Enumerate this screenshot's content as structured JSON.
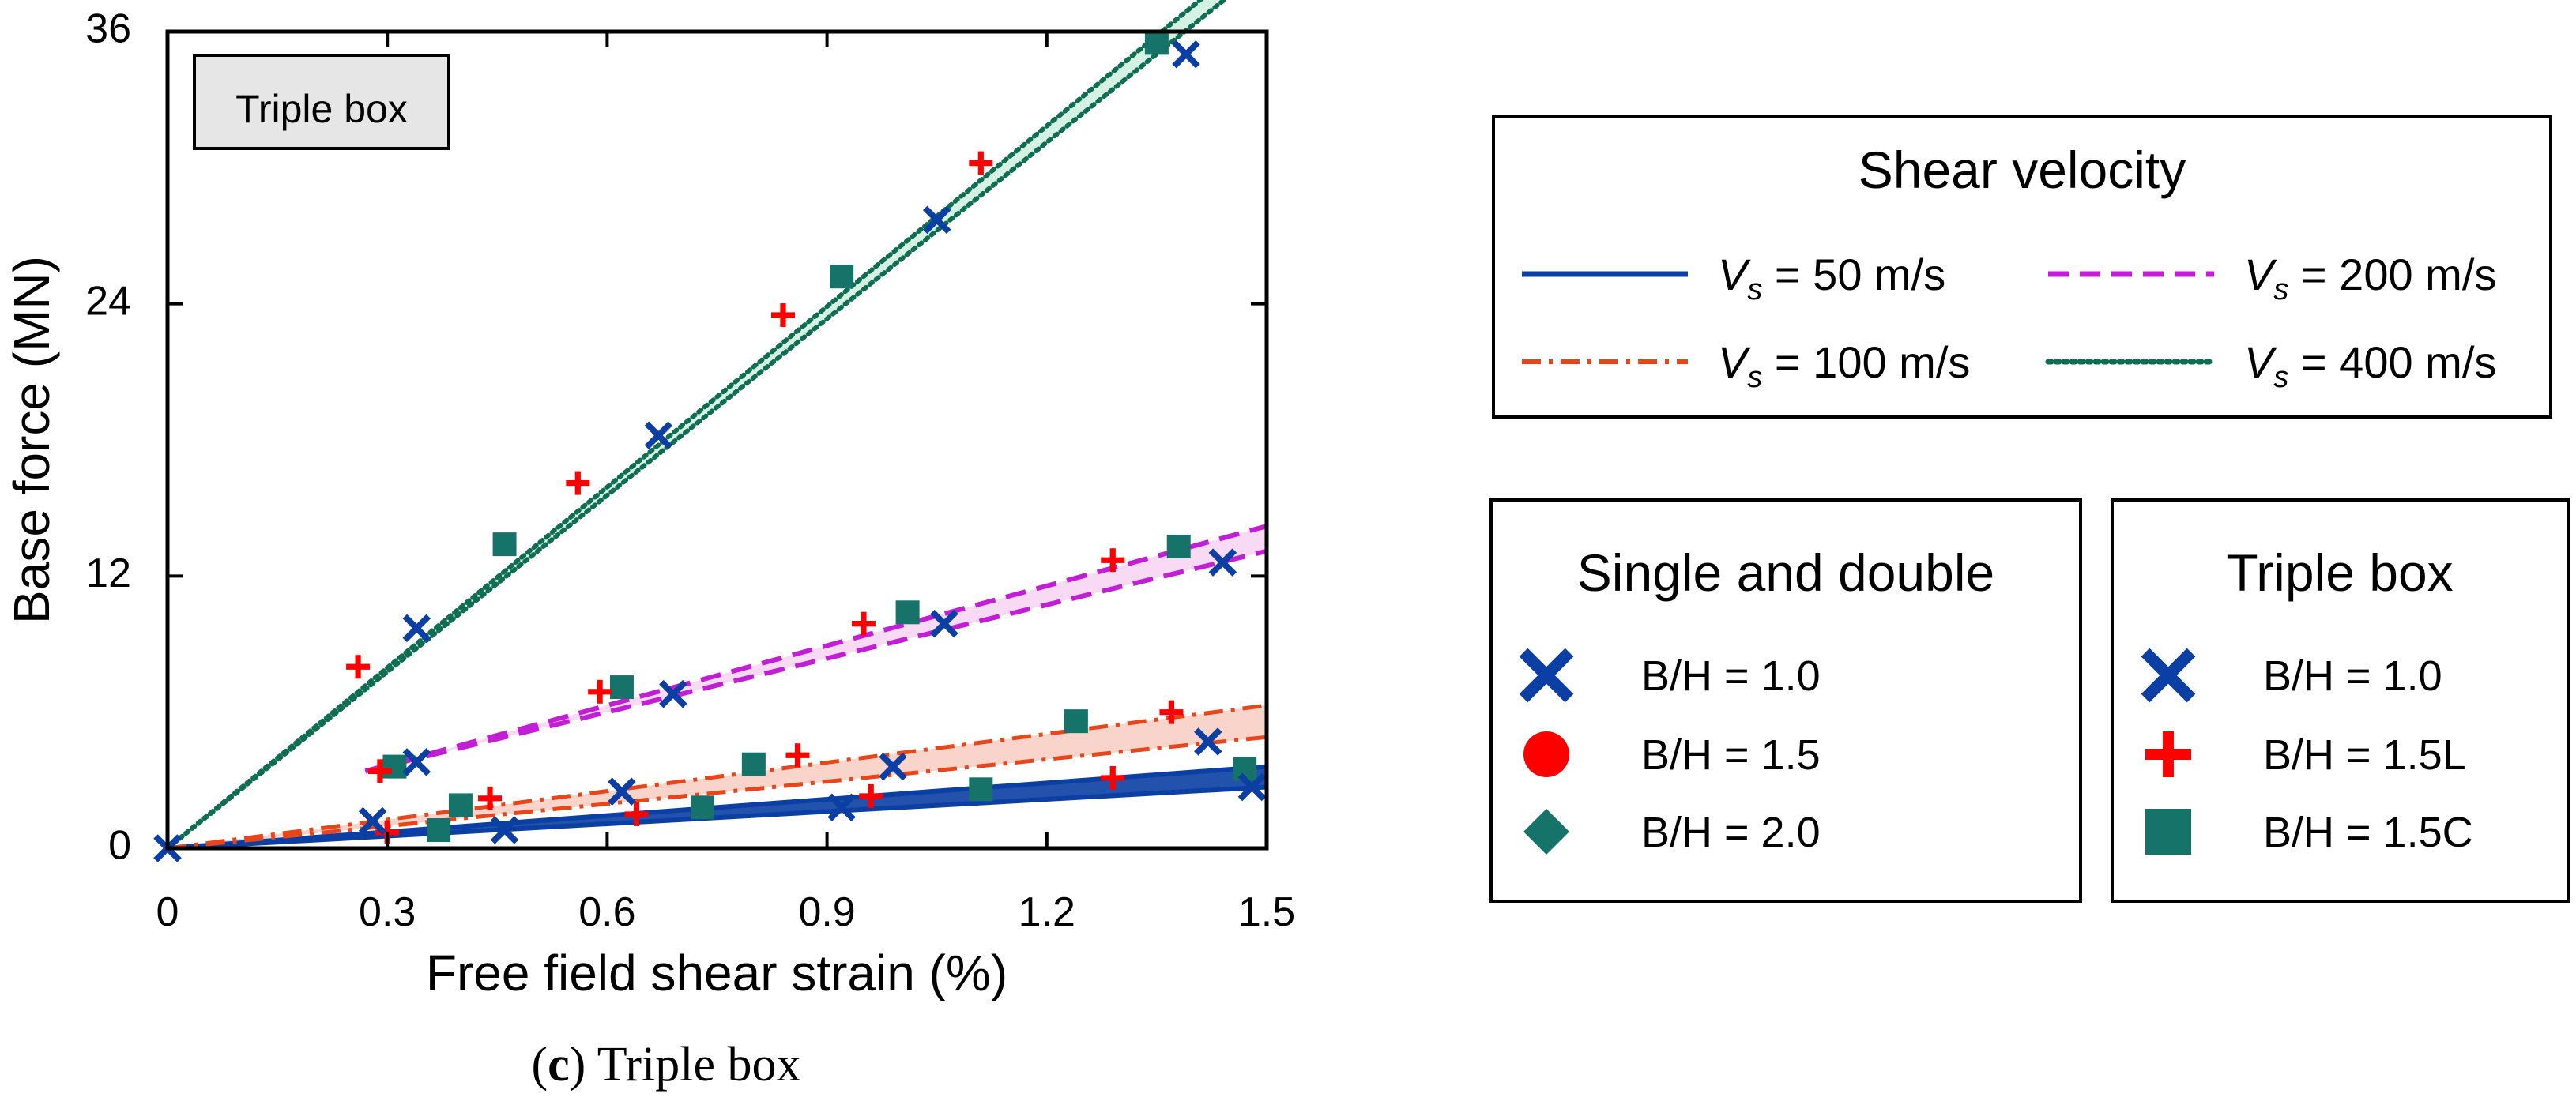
{
  "chart_data": {
    "type": "scatter",
    "caption_letter": "c",
    "caption_text": "Triple box",
    "panel_label": "Triple box",
    "xlabel": "Free field shear strain (%)",
    "ylabel": "Base force (MN)",
    "xlim": [
      0,
      1.5
    ],
    "ylim": [
      0,
      36
    ],
    "xticks": [
      0,
      0.3,
      0.6,
      0.9,
      1.2,
      1.5
    ],
    "xtick_labels": [
      "0",
      "0.3",
      "0.6",
      "0.9",
      "1.2",
      "1.5"
    ],
    "yticks": [
      0,
      12,
      24,
      36
    ],
    "ytick_labels": [
      "0",
      "12",
      "24",
      "36"
    ],
    "velocity_legend": {
      "title": "Shear velocity",
      "symbol": "V",
      "subscript": "s",
      "entries": [
        {
          "key": "v50",
          "label": " = 50 m/s",
          "color": "#0b3fa3",
          "style": "solid"
        },
        {
          "key": "v200",
          "label": " = 200 m/s",
          "color": "#c21ed6",
          "style": "dashed"
        },
        {
          "key": "v100",
          "label": " = 100 m/s",
          "color": "#e8461a",
          "style": "dashdot"
        },
        {
          "key": "v400",
          "label": " = 400 m/s",
          "color": "#0f6e52",
          "style": "dotted"
        }
      ]
    },
    "single_double_legend": {
      "title": "Single and double",
      "entries": [
        {
          "marker": "x",
          "label": "B/H = 1.0",
          "color": "#0b3fa3"
        },
        {
          "marker": "circle",
          "label": "B/H = 1.5",
          "color": "#ff0000"
        },
        {
          "marker": "diamond",
          "label": "B/H = 2.0",
          "color": "#16736a"
        }
      ]
    },
    "triple_legend": {
      "title": "Triple box",
      "entries": [
        {
          "marker": "x",
          "label": "B/H = 1.0",
          "color": "#0b3fa3"
        },
        {
          "marker": "plus",
          "label": "B/H = 1.5L",
          "color": "#ff0000"
        },
        {
          "marker": "square",
          "label": "B/H = 1.5C",
          "color": "#16736a"
        }
      ]
    },
    "bands": [
      {
        "velocity": "v50",
        "lines": [
          [
            [
              0,
              0
            ],
            [
              1.5,
              3.6
            ]
          ],
          [
            [
              0,
              0
            ],
            [
              1.5,
              2.7
            ]
          ]
        ],
        "fill": "#0b3fa3"
      },
      {
        "velocity": "v100",
        "lines": [
          [
            [
              0,
              0
            ],
            [
              1.5,
              6.3
            ]
          ],
          [
            [
              0,
              0
            ],
            [
              1.5,
              4.9
            ]
          ]
        ],
        "fill": "#f6c5b9"
      },
      {
        "velocity": "v200",
        "lines": [
          [
            [
              0.27,
              3.4
            ],
            [
              1.5,
              14.2
            ]
          ],
          [
            [
              0.27,
              3.4
            ],
            [
              1.5,
              13.1
            ]
          ]
        ],
        "fill": "#f5cdf1"
      },
      {
        "velocity": "v400",
        "lines": [
          [
            [
              0,
              0
            ],
            [
              1.5,
              39.8
            ]
          ],
          [
            [
              0,
              0
            ],
            [
              1.5,
              38.9
            ]
          ]
        ],
        "fill": "#c6ecd9"
      }
    ],
    "series": [
      {
        "name": "B/H = 1.0",
        "marker": "x",
        "color": "#0b3fa3",
        "points": [
          [
            0,
            0
          ],
          [
            0.28,
            1.2
          ],
          [
            0.46,
            0.8
          ],
          [
            0.62,
            2.5
          ],
          [
            0.92,
            1.8
          ],
          [
            1.48,
            2.7
          ],
          [
            0.99,
            3.6
          ],
          [
            1.42,
            4.7
          ],
          [
            0.34,
            3.8
          ],
          [
            0.69,
            6.8
          ],
          [
            1.06,
            9.9
          ],
          [
            1.44,
            12.6
          ],
          [
            0.34,
            9.7
          ],
          [
            0.67,
            18.2
          ],
          [
            1.05,
            27.7
          ],
          [
            1.39,
            35.0
          ]
        ]
      },
      {
        "name": "B/H = 1.5L",
        "marker": "plus",
        "color": "#ff0000",
        "points": [
          [
            0.3,
            0.7
          ],
          [
            0.64,
            1.5
          ],
          [
            0.96,
            2.3
          ],
          [
            1.29,
            3.1
          ],
          [
            0.29,
            3.4
          ],
          [
            0.44,
            2.2
          ],
          [
            0.86,
            4.1
          ],
          [
            1.37,
            6.0
          ],
          [
            0.59,
            6.9
          ],
          [
            0.95,
            9.9
          ],
          [
            1.29,
            12.7
          ],
          [
            0.26,
            8.0
          ],
          [
            0.56,
            16.1
          ],
          [
            0.84,
            23.5
          ],
          [
            1.11,
            30.2
          ]
        ]
      },
      {
        "name": "B/H = 1.5C",
        "marker": "square",
        "color": "#16736a",
        "points": [
          [
            0.37,
            0.8
          ],
          [
            0.4,
            1.9
          ],
          [
            0.73,
            1.8
          ],
          [
            1.11,
            2.6
          ],
          [
            1.47,
            3.5
          ],
          [
            0.8,
            3.7
          ],
          [
            1.24,
            5.6
          ],
          [
            0.31,
            3.6
          ],
          [
            0.62,
            7.1
          ],
          [
            1.01,
            10.4
          ],
          [
            1.38,
            13.3
          ],
          [
            0.46,
            13.4
          ],
          [
            0.92,
            25.2
          ],
          [
            1.35,
            35.5
          ]
        ]
      }
    ]
  }
}
